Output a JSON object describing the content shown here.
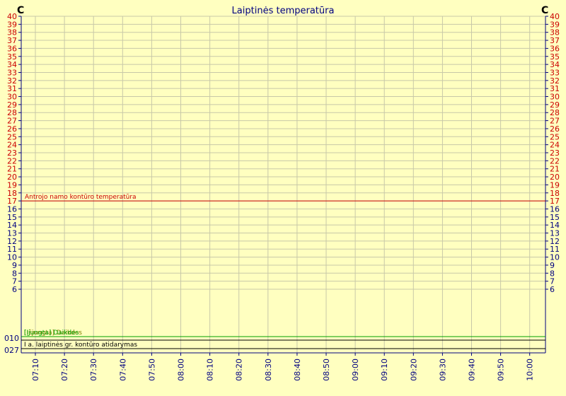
{
  "chart_data": {
    "type": "line",
    "title": "Laiptinės temperatūra",
    "unit_left": "C",
    "unit_right": "C",
    "y_ticks": [
      6,
      7,
      8,
      9,
      10,
      11,
      12,
      13,
      14,
      15,
      16,
      17,
      18,
      19,
      20,
      21,
      22,
      23,
      24,
      25,
      26,
      27,
      28,
      29,
      30,
      31,
      32,
      33,
      34,
      35,
      36,
      37,
      38,
      39,
      40
    ],
    "ylim": [
      6,
      40
    ],
    "x_labels": [
      "07:10",
      "07:20",
      "07:30",
      "07:40",
      "07:50",
      "08:00",
      "08:10",
      "08:20",
      "08:30",
      "08:40",
      "08:50",
      "09:00",
      "09:10",
      "09:20",
      "09:30",
      "09:40",
      "09:50",
      "10:00"
    ],
    "grid": true,
    "series": [
      {
        "name": "Antrojo namo kontūro temperatūra",
        "color": "#cc0000",
        "values": [
          17,
          17,
          17,
          17,
          17,
          17,
          17,
          17,
          17,
          17,
          17,
          17,
          17,
          17,
          17,
          17,
          17,
          17
        ]
      }
    ],
    "binary_band": {
      "labels_left": [
        "0",
        "1",
        "0"
      ],
      "labels_bottom": [
        "0",
        "2",
        "7"
      ],
      "tracks": [
        {
          "name": "[Išjungta] Daikdes",
          "color": "#808000",
          "level": 1
        },
        {
          "name": "[Įjungta] Daikdes",
          "color": "#00a000",
          "level": 1
        },
        {
          "name": "I a. laiptinės gr. kontūro atidarymas",
          "color": "#000000",
          "level": 0
        }
      ]
    }
  }
}
